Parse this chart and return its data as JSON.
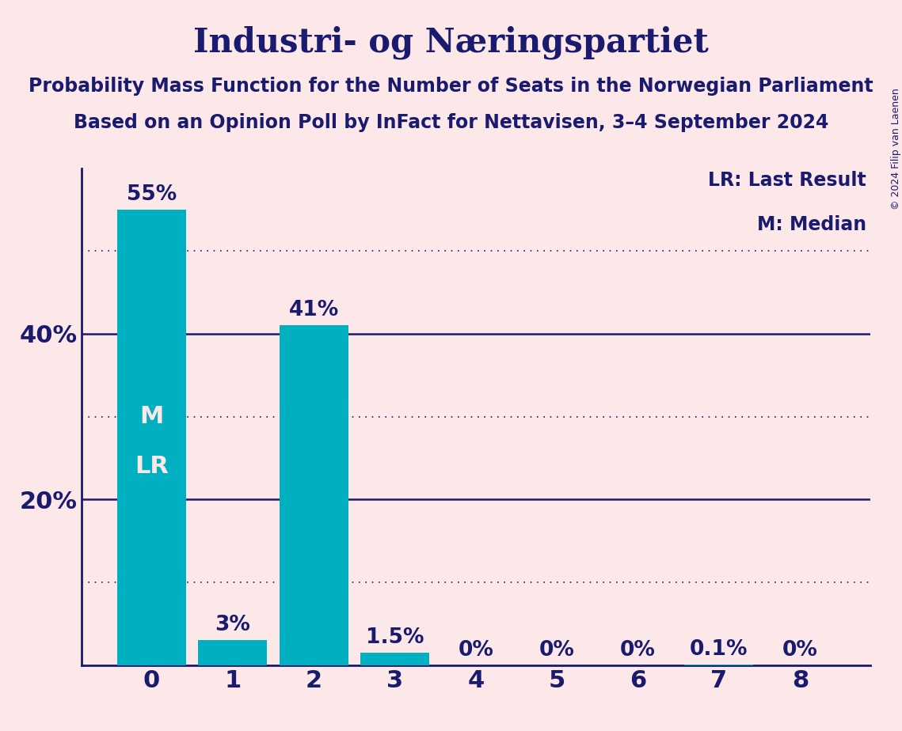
{
  "title": "Industri- og Næringspartiet",
  "subtitle1": "Probability Mass Function for the Number of Seats in the Norwegian Parliament",
  "subtitle2": "Based on an Opinion Poll by InFact for Nettavisen, 3–4 September 2024",
  "copyright": "© 2024 Filip van Laenen",
  "categories": [
    0,
    1,
    2,
    3,
    4,
    5,
    6,
    7,
    8
  ],
  "values": [
    55.0,
    3.0,
    41.0,
    1.5,
    0.0,
    0.0,
    0.0,
    0.1,
    0.0
  ],
  "bar_color": "#00afc0",
  "bg_color": "#fce8e8",
  "text_color": "#1a1a6e",
  "bar_label_color_outside": "#1a1a6e",
  "bar_label_color_inside": "#fce8e8",
  "grid_solid_color": "#1a1a6e",
  "grid_dot_color": "#1a1a6e",
  "solid_grid_values": [
    20,
    40
  ],
  "dot_grid_values": [
    10,
    30,
    50
  ],
  "ylim": [
    0,
    60
  ],
  "ytick_values": [
    20,
    40
  ],
  "bar_labels": [
    "55%",
    "3%",
    "41%",
    "1.5%",
    "0%",
    "0%",
    "0%",
    "0.1%",
    "0%"
  ],
  "median_bar_index": 0,
  "lr_bar_index": 0,
  "legend_lr": "LR: Last Result",
  "legend_m": "M: Median",
  "title_fontsize": 30,
  "subtitle_fontsize": 17,
  "axis_tick_fontsize": 22,
  "bar_label_fontsize": 19,
  "legend_fontsize": 17,
  "inside_label_fontsize": 22,
  "copyright_fontsize": 9
}
